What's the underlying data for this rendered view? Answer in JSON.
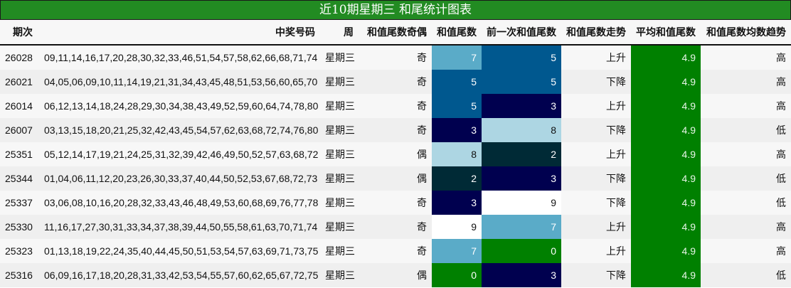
{
  "title": "近10期星期三 和尾统计图表",
  "columns": [
    "期次",
    "中奖号码",
    "周",
    "和值尾数奇偶",
    "和值尾数",
    "前一次和值尾数",
    "和值尾数走势",
    "平均和值尾数",
    "和值尾数均数趋势"
  ],
  "digit_colors": {
    "0": {
      "bg": "#008000",
      "fg": "#ffffff"
    },
    "2": {
      "bg": "#002A36",
      "fg": "#ffffff"
    },
    "3": {
      "bg": "#00004F",
      "fg": "#ffffff"
    },
    "5": {
      "bg": "#00588F",
      "fg": "#ffffff"
    },
    "7": {
      "bg": "#5AABC8",
      "fg": "#ffffff"
    },
    "8": {
      "bg": "#ADD6E3",
      "fg": "#111111"
    },
    "9": {
      "bg": "#ffffff",
      "fg": "#111111"
    }
  },
  "rows": [
    {
      "period": "26028",
      "numbers": "09,11,14,16,17,20,28,30,32,33,46,51,54,57,58,62,66,68,71,74",
      "weekday": "星期三",
      "parity": "奇",
      "tail": "7",
      "prev_tail": "5",
      "trend": "上升",
      "avg": "4.9",
      "avg_trend": "高"
    },
    {
      "period": "26021",
      "numbers": "04,05,06,09,10,11,14,19,21,31,34,43,45,48,51,53,56,60,65,70",
      "weekday": "星期三",
      "parity": "奇",
      "tail": "5",
      "prev_tail": "5",
      "trend": "下降",
      "avg": "4.9",
      "avg_trend": "高"
    },
    {
      "period": "26014",
      "numbers": "06,12,13,14,18,24,28,29,30,34,38,43,49,52,59,60,64,74,78,80",
      "weekday": "星期三",
      "parity": "奇",
      "tail": "5",
      "prev_tail": "3",
      "trend": "上升",
      "avg": "4.9",
      "avg_trend": "高"
    },
    {
      "period": "26007",
      "numbers": "03,13,15,18,20,21,25,32,42,43,45,54,57,62,63,68,72,74,76,80",
      "weekday": "星期三",
      "parity": "奇",
      "tail": "3",
      "prev_tail": "8",
      "trend": "下降",
      "avg": "4.9",
      "avg_trend": "低"
    },
    {
      "period": "25351",
      "numbers": "05,12,14,17,19,21,24,25,31,32,39,42,46,49,50,52,57,63,68,72",
      "weekday": "星期三",
      "parity": "偶",
      "tail": "8",
      "prev_tail": "2",
      "trend": "上升",
      "avg": "4.9",
      "avg_trend": "高"
    },
    {
      "period": "25344",
      "numbers": "01,04,06,11,12,20,23,26,30,33,37,40,44,50,52,53,67,68,72,73",
      "weekday": "星期三",
      "parity": "偶",
      "tail": "2",
      "prev_tail": "3",
      "trend": "下降",
      "avg": "4.9",
      "avg_trend": "低"
    },
    {
      "period": "25337",
      "numbers": "03,06,08,10,16,20,28,32,33,43,46,48,49,53,60,68,69,76,77,78",
      "weekday": "星期三",
      "parity": "奇",
      "tail": "3",
      "prev_tail": "9",
      "trend": "下降",
      "avg": "4.9",
      "avg_trend": "低"
    },
    {
      "period": "25330",
      "numbers": "11,16,17,27,30,31,33,34,37,38,39,44,50,55,58,61,63,70,71,74",
      "weekday": "星期三",
      "parity": "奇",
      "tail": "9",
      "prev_tail": "7",
      "trend": "上升",
      "avg": "4.9",
      "avg_trend": "高"
    },
    {
      "period": "25323",
      "numbers": "01,13,18,19,22,24,35,40,44,45,50,51,53,54,57,63,69,71,73,75",
      "weekday": "星期三",
      "parity": "奇",
      "tail": "7",
      "prev_tail": "0",
      "trend": "上升",
      "avg": "4.9",
      "avg_trend": "高"
    },
    {
      "period": "25316",
      "numbers": "06,09,16,17,18,20,28,31,33,42,53,54,55,57,60,62,65,67,72,75",
      "weekday": "星期三",
      "parity": "偶",
      "tail": "0",
      "prev_tail": "3",
      "trend": "下降",
      "avg": "4.9",
      "avg_trend": "低"
    }
  ]
}
